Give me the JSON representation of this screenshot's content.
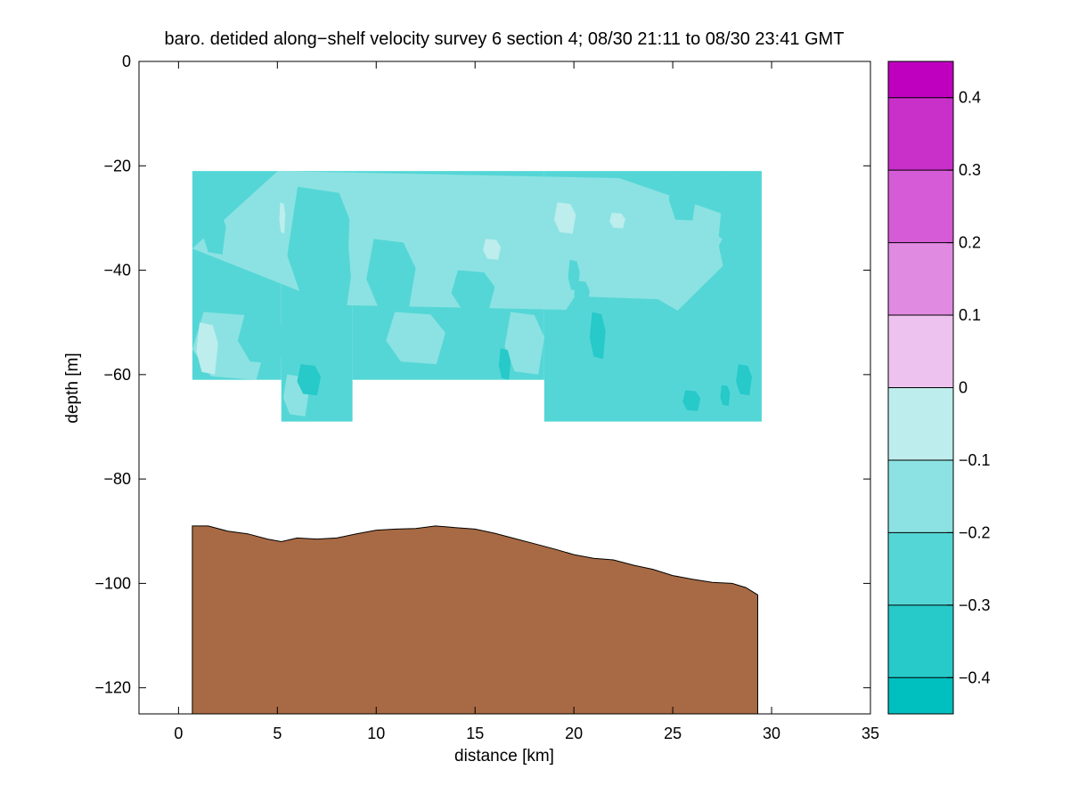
{
  "chart_data": {
    "type": "heatmap",
    "title": "baro. detided along−shelf velocity survey 6 section 4; 08/30 21:11 to 08/30 23:41 GMT",
    "xlabel": "distance [km]",
    "ylabel": "depth [m]",
    "xlim": [
      -2,
      35
    ],
    "ylim": [
      -125,
      0
    ],
    "xticks": [
      0,
      5,
      10,
      15,
      20,
      25,
      30,
      35
    ],
    "xtick_labels": [
      "0",
      "5",
      "10",
      "15",
      "20",
      "25",
      "30",
      "35"
    ],
    "yticks": [
      0,
      -20,
      -40,
      -60,
      -80,
      -100,
      -120
    ],
    "ytick_labels": [
      "0",
      "−20",
      "−40",
      "−60",
      "−80",
      "−100",
      "−120"
    ],
    "grid": false,
    "colorbar": {
      "placement": "right",
      "levels": [
        -0.45,
        -0.4,
        -0.3,
        -0.2,
        -0.1,
        0,
        0.1,
        0.2,
        0.3,
        0.4,
        0.45
      ],
      "tick_values": [
        0.4,
        0.3,
        0.2,
        0.1,
        0,
        -0.1,
        -0.2,
        -0.3,
        -0.4
      ],
      "tick_labels": [
        "0.4",
        "0.3",
        "0.2",
        "0.1",
        "0",
        "−0.1",
        "−0.2",
        "−0.3",
        "−0.4"
      ],
      "colors": [
        "#00bfbf",
        "#27c9c9",
        "#55d6d6",
        "#8ce2e2",
        "#bdeded",
        "#eec2ee",
        "#e18ae1",
        "#d65bd6",
        "#c92fc9",
        "#bf00bf"
      ]
    },
    "velocity_field": {
      "x_range": [
        0.7,
        29.5
      ],
      "top_depth": -21,
      "bottom_segments": [
        {
          "x": [
            0.7,
            5.2
          ],
          "depth": -61
        },
        {
          "x": [
            5.2,
            8.8
          ],
          "depth": -69
        },
        {
          "x": [
            8.8,
            18.5
          ],
          "depth": -61
        },
        {
          "x": [
            18.5,
            29.5
          ],
          "depth": -69
        }
      ],
      "background_value": -0.25,
      "patches": [
        {
          "x": [
            0.7,
            29.5
          ],
          "y": [
            -21,
            -48
          ],
          "value": -0.15
        },
        {
          "x": [
            0.7,
            4.5
          ],
          "y": [
            -48,
            -61
          ],
          "value": -0.15
        },
        {
          "x": [
            0.9,
            2.0
          ],
          "y": [
            -50,
            -60
          ],
          "value": -0.05
        },
        {
          "x": [
            5.5,
            9.0
          ],
          "y": [
            -24,
            -48
          ],
          "value": -0.25
        },
        {
          "x": [
            9.5,
            12.0
          ],
          "y": [
            -34,
            -48
          ],
          "value": -0.25
        },
        {
          "x": [
            13.8,
            16.0
          ],
          "y": [
            -40,
            -48
          ],
          "value": -0.25
        },
        {
          "x": [
            19.0,
            26.0
          ],
          "y": [
            -45,
            -56
          ],
          "value": -0.25
        },
        {
          "x": [
            24.8,
            26.2
          ],
          "y": [
            -21,
            -31
          ],
          "value": -0.25
        },
        {
          "x": [
            27.3,
            29.5
          ],
          "y": [
            -21,
            -46
          ],
          "value": -0.25
        },
        {
          "x": [
            3.0,
            5.5
          ],
          "y": [
            -48,
            -58
          ],
          "value": -0.25
        },
        {
          "x": [
            10.5,
            13.5
          ],
          "y": [
            -48,
            -58
          ],
          "value": -0.15
        },
        {
          "x": [
            16.5,
            18.5
          ],
          "y": [
            -48,
            -60
          ],
          "value": -0.15
        },
        {
          "x": [
            22.5,
            27.5
          ],
          "y": [
            -30,
            -40
          ],
          "value": -0.15
        },
        {
          "x": [
            5.3,
            6.6
          ],
          "y": [
            -60,
            -68
          ],
          "value": -0.15
        },
        {
          "x": [
            8.6,
            9.3
          ],
          "y": [
            -24,
            -45
          ],
          "value": -0.15
        },
        {
          "x": [
            1.2,
            2.4
          ],
          "y": [
            -28,
            -37
          ],
          "value": -0.25
        },
        {
          "x": [
            19.7,
            20.3
          ],
          "y": [
            -38,
            -44
          ],
          "value": -0.25
        },
        {
          "x": [
            20.0,
            20.8
          ],
          "y": [
            -42,
            -47
          ],
          "value": -0.25
        },
        {
          "x": [
            5.1,
            5.4
          ],
          "y": [
            -27,
            -33
          ],
          "value": -0.05
        },
        {
          "x": [
            19.0,
            20.1
          ],
          "y": [
            -27,
            -33
          ],
          "value": -0.05
        },
        {
          "x": [
            15.4,
            16.3
          ],
          "y": [
            -34,
            -38
          ],
          "value": -0.05
        },
        {
          "x": [
            21.8,
            22.6
          ],
          "y": [
            -29,
            -32
          ],
          "value": -0.05
        },
        {
          "x": [
            20.8,
            21.6
          ],
          "y": [
            -48,
            -57
          ],
          "value": -0.35
        },
        {
          "x": [
            16.2,
            16.8
          ],
          "y": [
            -55,
            -61
          ],
          "value": -0.35
        },
        {
          "x": [
            28.2,
            29.0
          ],
          "y": [
            -58,
            -64
          ],
          "value": -0.35
        },
        {
          "x": [
            27.4,
            27.9
          ],
          "y": [
            -62,
            -66
          ],
          "value": -0.35
        },
        {
          "x": [
            6.0,
            7.2
          ],
          "y": [
            -58,
            -64
          ],
          "value": -0.35
        },
        {
          "x": [
            25.5,
            26.4
          ],
          "y": [
            -63,
            -67
          ],
          "value": -0.35
        }
      ]
    },
    "bathymetry": {
      "fill_color": "#a86a44",
      "x": [
        0.7,
        1.5,
        2.5,
        3.5,
        4.5,
        5.2,
        6.0,
        7.0,
        8.0,
        9.0,
        10.0,
        11.0,
        12.0,
        13.0,
        14.0,
        15.0,
        16.0,
        17.0,
        18.0,
        19.0,
        20.0,
        21.0,
        22.0,
        23.0,
        24.0,
        25.0,
        26.0,
        27.0,
        28.0,
        28.7,
        29.3
      ],
      "depth": [
        -89,
        -89,
        -90,
        -90.5,
        -91.5,
        -92,
        -91.3,
        -91.5,
        -91.3,
        -90.5,
        -89.8,
        -89.6,
        -89.5,
        -89.0,
        -89.3,
        -89.6,
        -90.4,
        -91.4,
        -92.4,
        -93.4,
        -94.5,
        -95.2,
        -95.5,
        -96.5,
        -97.3,
        -98.5,
        -99.2,
        -99.8,
        -100.0,
        -100.8,
        -102.2
      ]
    }
  }
}
